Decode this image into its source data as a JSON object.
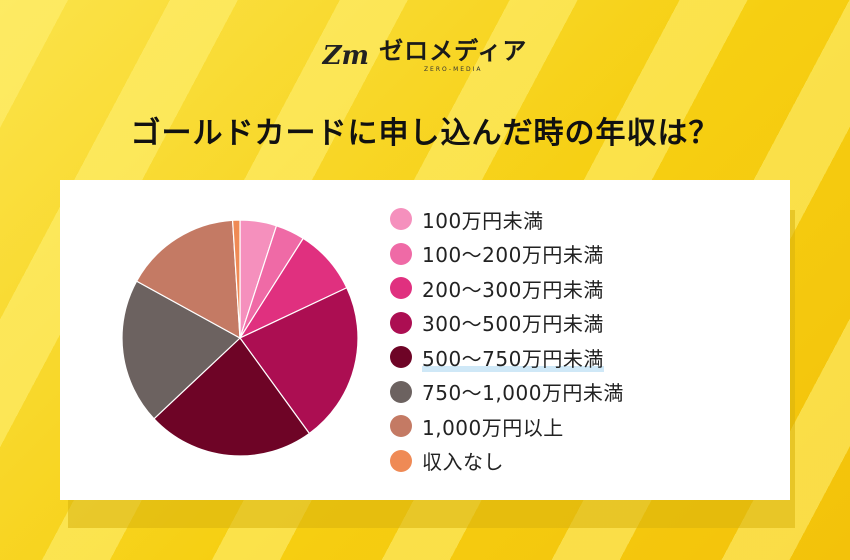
{
  "logo": {
    "mark": "Zm",
    "name": "ゼロメディア",
    "sub": "ZERO-MEDIA"
  },
  "title": "ゴールドカードに申し込んだ時の年収は？",
  "chart_data": {
    "type": "pie",
    "title": "ゴールドカードに申し込んだ時の年収は？",
    "highlighted": "500〜750万円未満",
    "categories": [
      "100万円未満",
      "100〜200万円未満",
      "200〜300万円未満",
      "300〜500万円未満",
      "500〜750万円未満",
      "750〜1,000万円未満",
      "1,000万円以上",
      "収入なし"
    ],
    "values": [
      5,
      4,
      9,
      22,
      23,
      20,
      16,
      1
    ],
    "colors": [
      "#f590bd",
      "#ef6aa6",
      "#e0307f",
      "#ac0e52",
      "#6e0426",
      "#6c6260",
      "#c47a64",
      "#ef8a55"
    ],
    "legend_position": "right"
  }
}
